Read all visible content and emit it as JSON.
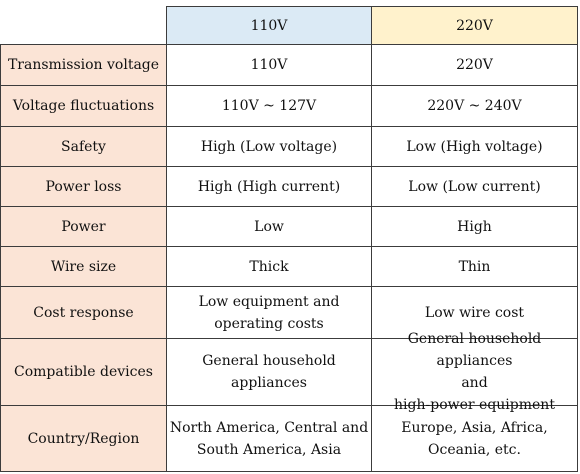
{
  "columns": {
    "col1": "110V",
    "col2": "220V"
  },
  "rows": [
    {
      "label": "Transmission voltage",
      "v110": [
        "110V"
      ],
      "v220": [
        "220V"
      ]
    },
    {
      "label": "Voltage fluctuations",
      "v110": [
        "110V ~ 127V"
      ],
      "v220": [
        "220V ~ 240V"
      ]
    },
    {
      "label": "Safety",
      "v110": [
        "High (Low voltage)"
      ],
      "v220": [
        "Low (High voltage)"
      ]
    },
    {
      "label": "Power loss",
      "v110": [
        "High (High current)"
      ],
      "v220": [
        "Low (Low current)"
      ]
    },
    {
      "label": "Power",
      "v110": [
        "Low"
      ],
      "v220": [
        "High"
      ]
    },
    {
      "label": "Wire size",
      "v110": [
        "Thick"
      ],
      "v220": [
        "Thin"
      ]
    },
    {
      "label": "Cost response",
      "v110": [
        "Low equipment and",
        "operating costs"
      ],
      "v220": [
        "Low wire cost"
      ]
    },
    {
      "label": "Compatible devices",
      "v110": [
        "General household appliances"
      ],
      "v220": [
        "General household appliances",
        "and",
        "high-power equipment"
      ]
    },
    {
      "label": "Country/Region",
      "v110": [
        "North America, Central and",
        "South America, Asia"
      ],
      "v220": [
        "Europe, Asia, Africa,",
        "Oceania, etc."
      ]
    }
  ]
}
